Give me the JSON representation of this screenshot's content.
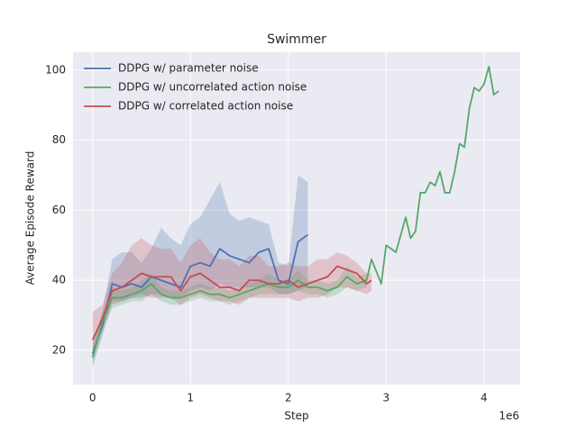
{
  "chart_data": {
    "type": "line",
    "title": "Swimmer",
    "xlabel": "Step",
    "ylabel": "Average Episode Reward",
    "x_offset_label": "1e6",
    "xlim": [
      -200000,
      4370000
    ],
    "ylim": [
      10.2,
      105.1
    ],
    "xticks": [
      0,
      {
        "value": 1000000,
        "label": "1"
      },
      {
        "value": 2000000,
        "label": "2"
      },
      {
        "value": 3000000,
        "label": "3"
      },
      {
        "value": 4000000,
        "label": "4"
      }
    ],
    "yticks": [
      20,
      40,
      60,
      80,
      100
    ],
    "grid": true,
    "legend": "upper left",
    "series": [
      {
        "name": "DDPG w/ parameter noise",
        "color": "#4c72b0",
        "x": [
          0,
          100000,
          200000,
          300000,
          400000,
          500000,
          600000,
          700000,
          800000,
          900000,
          1000000,
          1100000,
          1200000,
          1300000,
          1400000,
          1500000,
          1600000,
          1700000,
          1800000,
          1900000,
          2000000,
          2100000,
          2200000
        ],
        "values": [
          19,
          27,
          39,
          38,
          39,
          38,
          41,
          40,
          39,
          38,
          44,
          45,
          44,
          49,
          47,
          46,
          45,
          48,
          49,
          40,
          39,
          51,
          53
        ],
        "lower": [
          16,
          24,
          34,
          34,
          35,
          35,
          36,
          36,
          35,
          35,
          37,
          38,
          37,
          39,
          38,
          38,
          38,
          38,
          38,
          36,
          36,
          37,
          38
        ],
        "upper": [
          22,
          31,
          46,
          48,
          48,
          45,
          49,
          55,
          52,
          50,
          56,
          58,
          63,
          68,
          59,
          57,
          58,
          57,
          56,
          45,
          44,
          70,
          68
        ]
      },
      {
        "name": "DDPG w/ uncorrelated action noise",
        "color": "#55a868",
        "x": [
          0,
          100000,
          200000,
          300000,
          400000,
          500000,
          600000,
          700000,
          800000,
          900000,
          1000000,
          1100000,
          1200000,
          1300000,
          1400000,
          1500000,
          1600000,
          1700000,
          1800000,
          1900000,
          2000000,
          2100000,
          2200000,
          2300000,
          2400000,
          2500000,
          2600000,
          2700000,
          2800000,
          2850000,
          2950000,
          3000000,
          3100000,
          3200000,
          3250000,
          3300000,
          3350000,
          3400000,
          3450000,
          3500000,
          3550000,
          3600000,
          3650000,
          3700000,
          3750000,
          3800000,
          3850000,
          3900000,
          3950000,
          4000000,
          4050000,
          4100000,
          4150000
        ],
        "values": [
          18,
          28,
          35,
          35,
          36,
          37,
          39,
          36,
          35,
          35,
          36,
          37,
          36,
          36,
          35,
          36,
          37,
          38,
          39,
          38,
          38,
          40,
          38,
          38,
          37,
          38,
          41,
          39,
          40,
          46,
          39,
          50,
          48,
          58,
          52,
          54,
          65,
          65,
          68,
          67,
          71,
          65,
          65,
          71,
          79,
          78,
          89,
          95,
          94,
          96,
          101,
          93,
          94
        ],
        "lower": [
          15,
          25,
          32,
          33,
          34,
          34,
          36,
          34,
          33,
          33,
          34,
          35,
          34,
          34,
          33,
          34,
          35,
          36,
          36,
          36,
          36,
          37,
          36,
          36,
          35,
          36,
          38,
          37,
          38,
          null,
          null,
          null,
          null,
          null,
          null,
          null,
          null,
          null,
          null,
          null,
          null,
          null,
          null,
          null,
          null,
          null,
          null,
          null,
          null,
          null,
          null,
          null,
          null
        ],
        "upper": [
          21,
          31,
          38,
          37,
          38,
          40,
          42,
          38,
          37,
          37,
          38,
          39,
          38,
          38,
          37,
          38,
          39,
          40,
          42,
          40,
          40,
          43,
          40,
          40,
          39,
          40,
          44,
          41,
          42,
          null,
          null,
          null,
          null,
          null,
          null,
          null,
          null,
          null,
          null,
          null,
          null,
          null,
          null,
          null,
          null,
          null,
          null,
          null,
          null,
          null,
          null,
          null,
          null
        ]
      },
      {
        "name": "DDPG w/ correlated action noise",
        "color": "#c44e52",
        "x": [
          0,
          100000,
          200000,
          300000,
          400000,
          500000,
          600000,
          700000,
          800000,
          900000,
          1000000,
          1100000,
          1200000,
          1300000,
          1400000,
          1500000,
          1600000,
          1700000,
          1800000,
          1900000,
          2000000,
          2100000,
          2200000,
          2300000,
          2400000,
          2500000,
          2600000,
          2700000,
          2800000,
          2850000
        ],
        "values": [
          23,
          29,
          37,
          38,
          40,
          42,
          41,
          41,
          41,
          37,
          41,
          42,
          40,
          38,
          38,
          37,
          40,
          40,
          39,
          39,
          40,
          38,
          39,
          40,
          41,
          44,
          43,
          42,
          39,
          40
        ],
        "lower": [
          20,
          26,
          33,
          34,
          35,
          36,
          35,
          35,
          35,
          33,
          35,
          36,
          35,
          34,
          34,
          33,
          35,
          35,
          35,
          35,
          35,
          34,
          35,
          35,
          36,
          38,
          38,
          37,
          36,
          37
        ],
        "upper": [
          31,
          33,
          42,
          45,
          50,
          52,
          50,
          49,
          49,
          45,
          50,
          52,
          48,
          46,
          46,
          44,
          47,
          47,
          44,
          44,
          45,
          44,
          44,
          46,
          46,
          48,
          47,
          45,
          42,
          42
        ]
      }
    ]
  }
}
